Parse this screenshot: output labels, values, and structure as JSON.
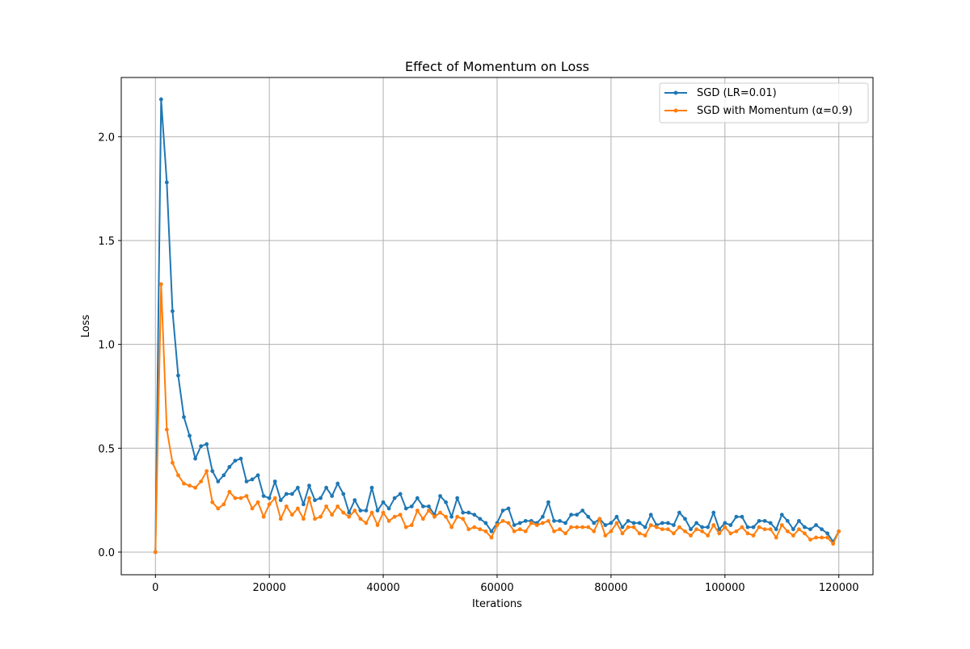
{
  "chart_data": {
    "type": "line",
    "title": "Effect of Momentum on Loss",
    "xlabel": "Iterations",
    "ylabel": "Loss",
    "xlim": [
      -6000,
      126000
    ],
    "ylim": [
      -0.109,
      2.285
    ],
    "xticks": [
      0,
      20000,
      40000,
      60000,
      80000,
      100000,
      120000
    ],
    "yticks": [
      0.0,
      0.5,
      1.0,
      1.5,
      2.0
    ],
    "xtick_labels": [
      "0",
      "20000",
      "40000",
      "60000",
      "80000",
      "100000",
      "120000"
    ],
    "ytick_labels": [
      "0.0",
      "0.5",
      "1.0",
      "1.5",
      "2.0"
    ],
    "grid": true,
    "legend_position": "top-right",
    "x": [
      0,
      1000,
      2000,
      3000,
      4000,
      5000,
      6000,
      7000,
      8000,
      9000,
      10000,
      11000,
      12000,
      13000,
      14000,
      15000,
      16000,
      17000,
      18000,
      19000,
      20000,
      21000,
      22000,
      23000,
      24000,
      25000,
      26000,
      27000,
      28000,
      29000,
      30000,
      31000,
      32000,
      33000,
      34000,
      35000,
      36000,
      37000,
      38000,
      39000,
      40000,
      41000,
      42000,
      43000,
      44000,
      45000,
      46000,
      47000,
      48000,
      49000,
      50000,
      51000,
      52000,
      53000,
      54000,
      55000,
      56000,
      57000,
      58000,
      59000,
      60000,
      61000,
      62000,
      63000,
      64000,
      65000,
      66000,
      67000,
      68000,
      69000,
      70000,
      71000,
      72000,
      73000,
      74000,
      75000,
      76000,
      77000,
      78000,
      79000,
      80000,
      81000,
      82000,
      83000,
      84000,
      85000,
      86000,
      87000,
      88000,
      89000,
      90000,
      91000,
      92000,
      93000,
      94000,
      95000,
      96000,
      97000,
      98000,
      99000,
      100000,
      101000,
      102000,
      103000,
      104000,
      105000,
      106000,
      107000,
      108000,
      109000,
      110000,
      111000,
      112000,
      113000,
      114000,
      115000,
      116000,
      117000,
      118000,
      119000,
      120000
    ],
    "series": [
      {
        "name": "SGD (LR=0.01)",
        "color": "#1f77b4",
        "values": [
          0.0,
          2.18,
          1.78,
          1.16,
          0.85,
          0.65,
          0.56,
          0.45,
          0.51,
          0.52,
          0.39,
          0.34,
          0.37,
          0.41,
          0.44,
          0.45,
          0.34,
          0.35,
          0.37,
          0.27,
          0.26,
          0.34,
          0.25,
          0.28,
          0.28,
          0.31,
          0.23,
          0.32,
          0.25,
          0.26,
          0.31,
          0.27,
          0.33,
          0.28,
          0.19,
          0.25,
          0.2,
          0.2,
          0.31,
          0.2,
          0.24,
          0.21,
          0.26,
          0.28,
          0.21,
          0.22,
          0.26,
          0.22,
          0.22,
          0.18,
          0.27,
          0.24,
          0.17,
          0.26,
          0.19,
          0.19,
          0.18,
          0.16,
          0.14,
          0.1,
          0.14,
          0.2,
          0.21,
          0.13,
          0.14,
          0.15,
          0.15,
          0.14,
          0.17,
          0.24,
          0.15,
          0.15,
          0.14,
          0.18,
          0.18,
          0.2,
          0.17,
          0.14,
          0.16,
          0.13,
          0.14,
          0.17,
          0.12,
          0.15,
          0.14,
          0.14,
          0.12,
          0.18,
          0.13,
          0.14,
          0.14,
          0.13,
          0.19,
          0.16,
          0.11,
          0.14,
          0.12,
          0.12,
          0.19,
          0.11,
          0.14,
          0.13,
          0.17,
          0.17,
          0.12,
          0.12,
          0.15,
          0.15,
          0.14,
          0.11,
          0.18,
          0.15,
          0.11,
          0.15,
          0.12,
          0.11,
          0.13,
          0.11,
          0.09,
          0.05,
          0.1
        ]
      },
      {
        "name": "SGD with Momentum (α=0.9)",
        "color": "#ff7f0e",
        "values": [
          0.0,
          1.29,
          0.59,
          0.43,
          0.37,
          0.33,
          0.32,
          0.31,
          0.34,
          0.39,
          0.24,
          0.21,
          0.23,
          0.29,
          0.26,
          0.26,
          0.27,
          0.21,
          0.24,
          0.17,
          0.23,
          0.26,
          0.16,
          0.22,
          0.18,
          0.21,
          0.16,
          0.26,
          0.16,
          0.17,
          0.22,
          0.18,
          0.22,
          0.19,
          0.17,
          0.2,
          0.16,
          0.14,
          0.19,
          0.13,
          0.19,
          0.15,
          0.17,
          0.18,
          0.12,
          0.13,
          0.2,
          0.16,
          0.2,
          0.17,
          0.19,
          0.17,
          0.12,
          0.17,
          0.16,
          0.11,
          0.12,
          0.11,
          0.1,
          0.07,
          0.13,
          0.15,
          0.14,
          0.1,
          0.11,
          0.1,
          0.14,
          0.13,
          0.14,
          0.15,
          0.1,
          0.11,
          0.09,
          0.12,
          0.12,
          0.12,
          0.12,
          0.1,
          0.16,
          0.08,
          0.1,
          0.14,
          0.09,
          0.12,
          0.12,
          0.09,
          0.08,
          0.13,
          0.12,
          0.11,
          0.11,
          0.09,
          0.12,
          0.1,
          0.08,
          0.11,
          0.1,
          0.08,
          0.13,
          0.09,
          0.12,
          0.09,
          0.1,
          0.12,
          0.09,
          0.08,
          0.12,
          0.11,
          0.11,
          0.07,
          0.13,
          0.1,
          0.08,
          0.11,
          0.09,
          0.06,
          0.07,
          0.07,
          0.07,
          0.04,
          0.1
        ]
      }
    ]
  }
}
